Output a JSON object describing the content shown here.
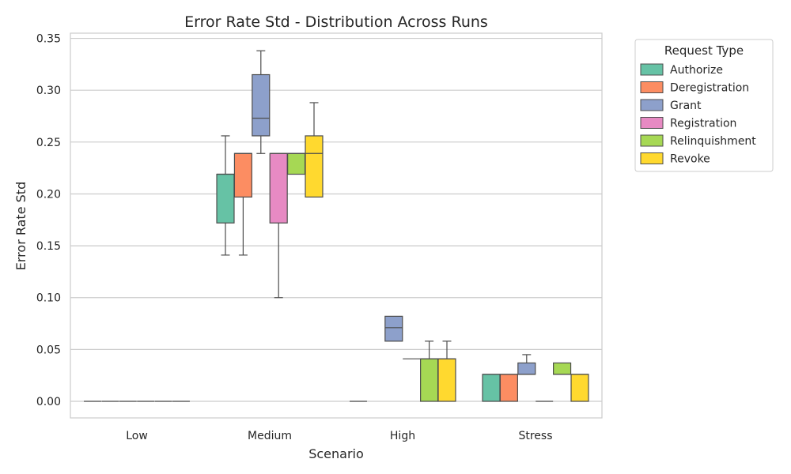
{
  "chart_data": {
    "type": "box",
    "title": "Error Rate Std - Distribution Across Runs",
    "xlabel": "Scenario",
    "ylabel": "Error Rate Std",
    "ylim": [
      -0.016,
      0.355
    ],
    "yticks": [
      "0.00",
      "0.05",
      "0.10",
      "0.15",
      "0.20",
      "0.25",
      "0.30",
      "0.35"
    ],
    "ytick_values": [
      0,
      0.05,
      0.1,
      0.15,
      0.2,
      0.25,
      0.3,
      0.35
    ],
    "grid": true,
    "legend_position": "outside-top-right",
    "legend_title": "Request Type",
    "categories": [
      "Low",
      "Medium",
      "High",
      "Stress"
    ],
    "series": [
      {
        "name": "Authorize",
        "color": "#66c2a5",
        "boxes": [
          {
            "min": 0,
            "q1": 0,
            "median": 0,
            "q3": 0,
            "max": 0
          },
          {
            "min": 0.141,
            "q1": 0.172,
            "median": 0.219,
            "q3": 0.219,
            "max": 0.256
          },
          {
            "min": 0,
            "q1": 0,
            "median": 0,
            "q3": 0,
            "max": 0
          },
          {
            "min": 0,
            "q1": 0,
            "median": 0.026,
            "q3": 0.026,
            "max": 0.026
          }
        ]
      },
      {
        "name": "Deregistration",
        "color": "#fc8d62",
        "boxes": [
          {
            "min": 0,
            "q1": 0,
            "median": 0,
            "q3": 0,
            "max": 0
          },
          {
            "min": 0.141,
            "q1": 0.197,
            "median": 0.239,
            "q3": 0.239,
            "max": 0.239
          },
          null,
          {
            "min": 0,
            "q1": 0,
            "median": 0.026,
            "q3": 0.026,
            "max": 0.026
          }
        ]
      },
      {
        "name": "Grant",
        "color": "#8da0cb",
        "boxes": [
          {
            "min": 0,
            "q1": 0,
            "median": 0,
            "q3": 0,
            "max": 0
          },
          {
            "min": 0.239,
            "q1": 0.256,
            "median": 0.273,
            "q3": 0.315,
            "max": 0.338
          },
          {
            "min": 0.058,
            "q1": 0.058,
            "median": 0.071,
            "q3": 0.082,
            "max": 0.082
          },
          {
            "min": 0.026,
            "q1": 0.026,
            "median": 0.026,
            "q3": 0.037,
            "max": 0.045
          }
        ]
      },
      {
        "name": "Registration",
        "color": "#e78ac3",
        "boxes": [
          {
            "min": 0,
            "q1": 0,
            "median": 0,
            "q3": 0,
            "max": 0
          },
          {
            "min": 0.1,
            "q1": 0.172,
            "median": 0.239,
            "q3": 0.239,
            "max": 0.239
          },
          {
            "min": 0.041,
            "q1": 0.041,
            "median": 0.041,
            "q3": 0.041,
            "max": 0.041
          },
          {
            "min": 0,
            "q1": 0,
            "median": 0,
            "q3": 0,
            "max": 0
          }
        ]
      },
      {
        "name": "Relinquishment",
        "color": "#a6d854",
        "boxes": [
          {
            "min": 0,
            "q1": 0,
            "median": 0,
            "q3": 0,
            "max": 0
          },
          {
            "min": 0.219,
            "q1": 0.219,
            "median": 0.239,
            "q3": 0.239,
            "max": 0.239
          },
          {
            "min": 0,
            "q1": 0,
            "median": 0.041,
            "q3": 0.041,
            "max": 0.058
          },
          {
            "min": 0.026,
            "q1": 0.026,
            "median": 0.026,
            "q3": 0.037,
            "max": 0.037
          }
        ]
      },
      {
        "name": "Revoke",
        "color": "#ffd92f",
        "boxes": [
          {
            "min": 0,
            "q1": 0,
            "median": 0,
            "q3": 0,
            "max": 0
          },
          {
            "min": 0.197,
            "q1": 0.197,
            "median": 0.239,
            "q3": 0.256,
            "max": 0.288
          },
          {
            "min": 0,
            "q1": 0,
            "median": 0.041,
            "q3": 0.041,
            "max": 0.058
          },
          {
            "min": 0,
            "q1": 0,
            "median": 0.026,
            "q3": 0.026,
            "max": 0.026
          }
        ]
      }
    ]
  }
}
